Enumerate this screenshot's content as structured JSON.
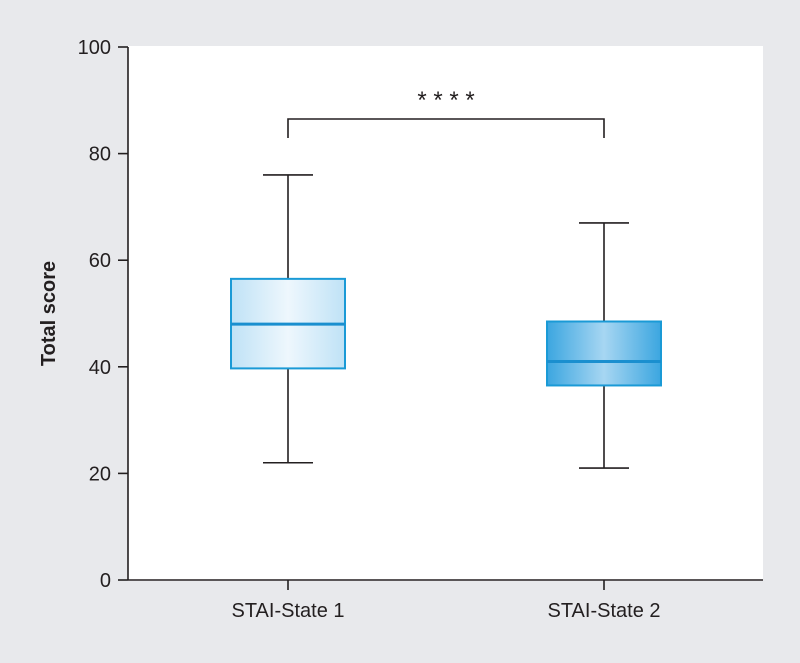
{
  "chart_data": {
    "type": "boxplot",
    "title": "",
    "xlabel": "",
    "ylabel": "Total score",
    "ylim": [
      0,
      100
    ],
    "yticks": [
      0,
      20,
      40,
      60,
      80,
      100
    ],
    "grid": false,
    "legend": "none",
    "categories": [
      "STAI-State 1",
      "STAI-State 2"
    ],
    "boxes": [
      {
        "category": "STAI-State 1",
        "min": 22,
        "q1": 39.7,
        "median": 48,
        "q3": 56.5,
        "max": 76
      },
      {
        "category": "STAI-State 2",
        "min": 21,
        "q1": 36.5,
        "median": 41,
        "q3": 48.5,
        "max": 67
      }
    ],
    "significance": {
      "between": [
        "STAI-State 1",
        "STAI-State 2"
      ],
      "label": "* * * *"
    },
    "colors": {
      "background": "#e8e9ec",
      "plot_background": "#ffffff",
      "box_stroke": "#1a9ad6",
      "box_fill_light": "#e6f3fb",
      "box_fill_dark": "#3aa6e0",
      "median_line": "#1a8fcf",
      "axis": "#231f20"
    }
  }
}
